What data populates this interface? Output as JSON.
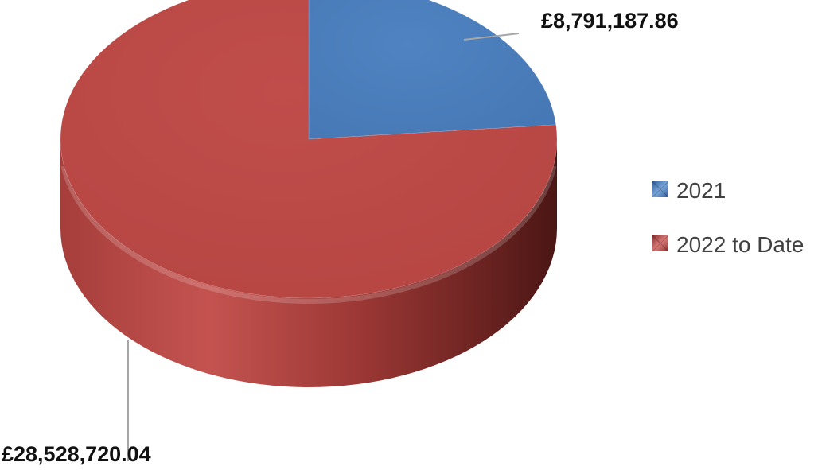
{
  "chart_data": {
    "type": "pie",
    "style": "3d",
    "title": "",
    "series": [
      {
        "name": "2021",
        "value": 8791187.86,
        "label": "£8,791,187.86",
        "color": "#4a7ebb"
      },
      {
        "name": "2022 to Date",
        "value": 28528720.04,
        "label": "£28,528,720.04",
        "color": "#be4b48"
      }
    ],
    "legend": {
      "position": "right",
      "entries": [
        "2021",
        "2022 to Date"
      ]
    }
  }
}
